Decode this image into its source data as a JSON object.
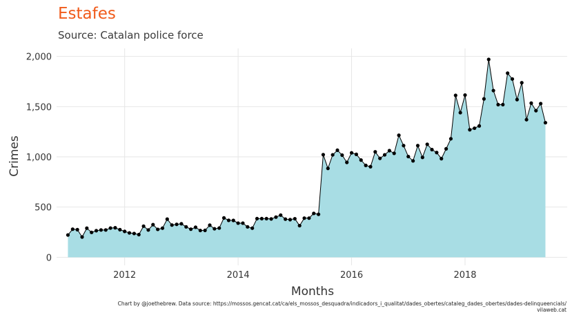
{
  "chart_data": {
    "type": "area",
    "title": "Estafes",
    "subtitle": "Source: Catalan police force",
    "xlabel": "Months",
    "ylabel": "Crimes",
    "caption_line1": "Chart by @joethebrew. Data source: https://mossos.gencat.cat/ca/els_mossos_desquadra/indicadors_i_qualitat/dades_obertes/cataleg_dades_obertes/dades-delinqueencials/",
    "caption_line2": "vilaweb.cat",
    "xlim": [
      2010.8,
      2019.8
    ],
    "ylim": [
      -80,
      2080
    ],
    "x_ticks": [
      {
        "value": 2012,
        "label": "2012"
      },
      {
        "value": 2014,
        "label": "2014"
      },
      {
        "value": 2016,
        "label": "2016"
      },
      {
        "value": 2018,
        "label": "2018"
      }
    ],
    "y_ticks": [
      {
        "value": 0,
        "label": "0"
      },
      {
        "value": 500,
        "label": "500"
      },
      {
        "value": 1000,
        "label": "1,000"
      },
      {
        "value": 1500,
        "label": "1,500"
      },
      {
        "value": 2000,
        "label": "2,000"
      }
    ],
    "grid": true,
    "fill_color": "#a8dde4",
    "line_color": "#000000",
    "x_start": "2011-01",
    "values": [
      222,
      280,
      275,
      202,
      290,
      248,
      265,
      272,
      272,
      291,
      294,
      275,
      258,
      243,
      237,
      226,
      310,
      272,
      325,
      278,
      290,
      380,
      321,
      328,
      334,
      303,
      280,
      299,
      267,
      268,
      320,
      284,
      291,
      392,
      368,
      367,
      340,
      340,
      303,
      290,
      385,
      385,
      385,
      382,
      400,
      420,
      380,
      375,
      384,
      315,
      390,
      390,
      437,
      428,
      1022,
      885,
      1020,
      1066,
      1017,
      945,
      1040,
      1025,
      968,
      915,
      902,
      1050,
      985,
      1020,
      1062,
      1035,
      1215,
      1112,
      1003,
      960,
      1112,
      995,
      1125,
      1072,
      1043,
      982,
      1080,
      1180,
      1612,
      1440,
      1615,
      1270,
      1285,
      1308,
      1577,
      1970,
      1660,
      1520,
      1520,
      1833,
      1775,
      1570,
      1738,
      1370,
      1535,
      1460,
      1530,
      1340
    ]
  }
}
